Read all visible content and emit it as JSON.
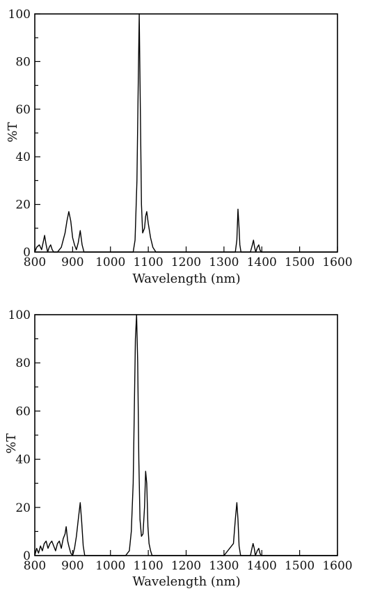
{
  "chart_data": [
    {
      "type": "line",
      "title": "",
      "xlabel": "Wavelength (nm)",
      "ylabel": "%T",
      "xlim": [
        800,
        1600
      ],
      "ylim": [
        0,
        100
      ],
      "x_ticks": [
        "800",
        "900",
        "1000",
        "1100",
        "1200",
        "1300",
        "1400",
        "1500",
        "1600"
      ],
      "y_ticks": [
        "0",
        "20",
        "40",
        "60",
        "80",
        "100"
      ],
      "grid": false,
      "series": [
        {
          "x": [
            800,
            805,
            812,
            818,
            822,
            826,
            830,
            834,
            838,
            842,
            846,
            850,
            860,
            870,
            880,
            885,
            890,
            895,
            900,
            905,
            910,
            915,
            920,
            925,
            930,
            933,
            936,
            940,
            1000,
            1050,
            1060,
            1065,
            1070,
            1073,
            1076,
            1079,
            1082,
            1085,
            1090,
            1093,
            1096,
            1100,
            1106,
            1112,
            1120,
            1128,
            1200,
            1300,
            1330,
            1334,
            1337,
            1340,
            1342,
            1345,
            1350,
            1370,
            1375,
            1378,
            1381,
            1384,
            1388,
            1392,
            1395,
            1398,
            1500,
            1600
          ],
          "y": [
            0,
            2,
            3,
            1,
            4,
            7,
            3,
            0,
            2,
            3,
            1,
            0,
            0,
            2,
            8,
            13,
            17,
            13,
            6,
            3,
            1,
            4,
            9,
            3,
            0,
            0,
            0,
            0,
            0,
            0,
            0,
            5,
            30,
            65,
            100,
            60,
            20,
            8,
            10,
            15,
            17,
            12,
            6,
            2,
            0,
            0,
            0,
            0,
            0,
            5,
            18,
            10,
            3,
            0,
            0,
            0,
            3,
            5,
            2,
            0,
            2,
            3,
            1,
            0,
            0,
            0
          ]
        }
      ]
    },
    {
      "type": "line",
      "title": "",
      "xlabel": "Wavelength (nm)",
      "ylabel": "%T",
      "xlim": [
        800,
        1600
      ],
      "ylim": [
        0,
        100
      ],
      "x_ticks": [
        "800",
        "900",
        "1000",
        "1100",
        "1200",
        "1300",
        "1400",
        "1500",
        "1600"
      ],
      "y_ticks": [
        "0",
        "20",
        "40",
        "60",
        "80",
        "100"
      ],
      "grid": false,
      "series": [
        {
          "x": [
            800,
            805,
            810,
            815,
            820,
            825,
            830,
            835,
            840,
            845,
            850,
            855,
            860,
            865,
            870,
            875,
            880,
            883,
            887,
            890,
            895,
            900,
            905,
            910,
            915,
            920,
            924,
            928,
            932,
            936,
            940,
            1000,
            1040,
            1050,
            1055,
            1060,
            1063,
            1066,
            1069,
            1072,
            1075,
            1078,
            1082,
            1086,
            1090,
            1093,
            1096,
            1099,
            1102,
            1106,
            1110,
            1116,
            1122,
            1200,
            1300,
            1325,
            1330,
            1334,
            1337,
            1340,
            1344,
            1350,
            1370,
            1374,
            1377,
            1380,
            1383,
            1388,
            1392,
            1395,
            1398,
            1500,
            1600
          ],
          "y": [
            0,
            3,
            1,
            4,
            2,
            5,
            6,
            3,
            5,
            6,
            4,
            2,
            5,
            6,
            3,
            7,
            9,
            12,
            6,
            4,
            1,
            0,
            3,
            8,
            15,
            22,
            14,
            4,
            0,
            0,
            0,
            0,
            0,
            2,
            10,
            30,
            60,
            90,
            100,
            80,
            40,
            15,
            8,
            9,
            20,
            35,
            30,
            12,
            5,
            2,
            0,
            0,
            0,
            0,
            0,
            5,
            15,
            22,
            15,
            4,
            0,
            0,
            0,
            3,
            5,
            3,
            0,
            2,
            3,
            1,
            0,
            0,
            0
          ]
        }
      ]
    }
  ]
}
